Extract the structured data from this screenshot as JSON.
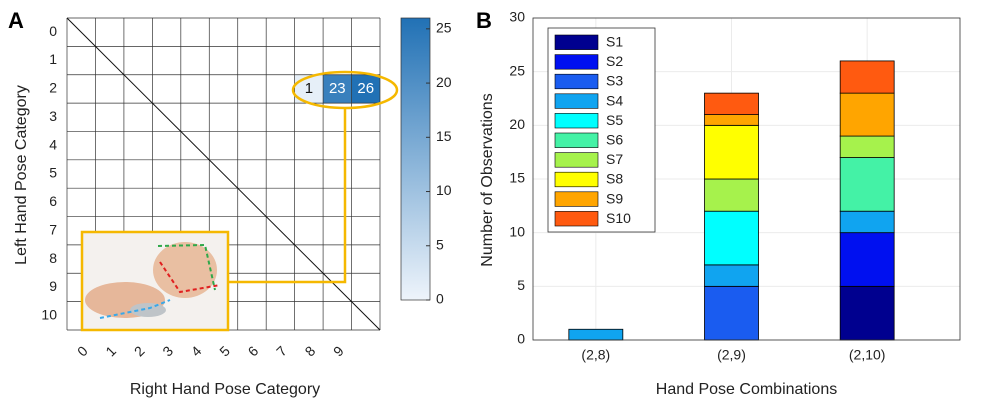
{
  "chart_data": [
    {
      "type": "heatmap",
      "panel_label": "A",
      "xlabel": "Right Hand Pose Category",
      "ylabel": "Left Hand Pose Category",
      "x_categories": [
        "0",
        "1",
        "2",
        "3",
        "4",
        "5",
        "6",
        "7",
        "8",
        "9",
        null
      ],
      "y_categories": [
        "0",
        "1",
        "2",
        "3",
        "4",
        "5",
        "6",
        "7",
        "8",
        "9",
        "10"
      ],
      "values": [
        [
          null,
          null,
          null,
          null,
          null,
          null,
          null,
          null,
          null,
          null,
          null
        ],
        [
          null,
          null,
          null,
          null,
          null,
          null,
          null,
          null,
          null,
          null,
          null
        ],
        [
          null,
          null,
          null,
          null,
          null,
          null,
          null,
          null,
          1,
          23,
          26
        ],
        [
          null,
          null,
          null,
          null,
          null,
          null,
          null,
          null,
          null,
          null,
          null
        ],
        [
          null,
          null,
          null,
          null,
          null,
          null,
          null,
          null,
          null,
          null,
          null
        ],
        [
          null,
          null,
          null,
          null,
          null,
          null,
          null,
          null,
          null,
          null,
          null
        ],
        [
          null,
          null,
          null,
          null,
          null,
          null,
          null,
          null,
          null,
          null,
          null
        ],
        [
          null,
          null,
          null,
          null,
          null,
          null,
          null,
          null,
          null,
          null,
          null
        ],
        [
          null,
          null,
          null,
          null,
          null,
          null,
          null,
          null,
          null,
          null,
          null
        ],
        [
          null,
          null,
          null,
          null,
          null,
          null,
          null,
          null,
          null,
          null,
          null
        ],
        [
          null,
          null,
          null,
          null,
          null,
          null,
          null,
          null,
          null,
          null,
          null
        ]
      ],
      "clim": [
        0,
        26
      ],
      "cticks": [
        0,
        5,
        10,
        15,
        20,
        25
      ],
      "cmap": [
        "#eef4fb",
        "#2171b5"
      ]
    },
    {
      "type": "bar",
      "stacked": true,
      "panel_label": "B",
      "xlabel": "Hand Pose Combinations",
      "ylabel": "Number of Observations",
      "categories": [
        "(2,8)",
        "(2,9)",
        "(2,10)"
      ],
      "series": [
        {
          "name": "S1",
          "color": "#00008f",
          "values": [
            0,
            0,
            5
          ]
        },
        {
          "name": "S2",
          "color": "#0010f0",
          "values": [
            0,
            0,
            5
          ]
        },
        {
          "name": "S3",
          "color": "#1a5cf0",
          "values": [
            0,
            5,
            0
          ]
        },
        {
          "name": "S4",
          "color": "#10a4f0",
          "values": [
            1,
            2,
            2
          ]
        },
        {
          "name": "S5",
          "color": "#00ffff",
          "values": [
            0,
            5,
            0
          ]
        },
        {
          "name": "S6",
          "color": "#44f2a6",
          "values": [
            0,
            0,
            5
          ]
        },
        {
          "name": "S7",
          "color": "#a6f24c",
          "values": [
            0,
            3,
            2
          ]
        },
        {
          "name": "S8",
          "color": "#ffff00",
          "values": [
            0,
            5,
            0
          ]
        },
        {
          "name": "S9",
          "color": "#ffa500",
          "values": [
            0,
            1,
            4
          ]
        },
        {
          "name": "S10",
          "color": "#ff5a10",
          "values": [
            0,
            2,
            3
          ]
        }
      ],
      "ylim": [
        0,
        30
      ],
      "yticks": [
        0,
        5,
        10,
        15,
        20,
        25,
        30
      ],
      "grid": true,
      "legend": "upper left"
    }
  ]
}
